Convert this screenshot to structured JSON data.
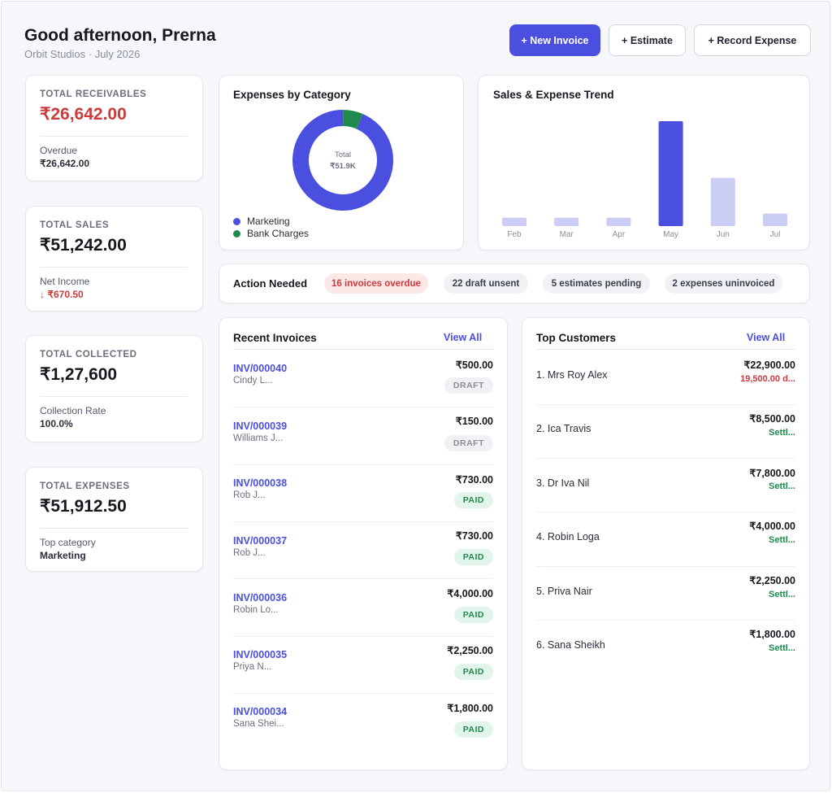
{
  "header": {
    "greeting": "Good afternoon, Prerna",
    "subtitle": "Orbit Studios · July 2026",
    "new_invoice": "+ New Invoice",
    "estimate": "+ Estimate",
    "record_expense": "+ Record Expense"
  },
  "colors": {
    "accent": "#4a4fe0",
    "marketing": "#4a4fe0",
    "bank_charges": "#1f8a4c",
    "danger": "#cc3b3b",
    "bar_muted": "#cbcdf5"
  },
  "kpis": {
    "receivables": {
      "label": "TOTAL RECEIVABLES",
      "value": "₹26,642.00",
      "sublabel": "Overdue",
      "subvalue": "₹26,642.00"
    },
    "sales": {
      "label": "TOTAL SALES",
      "value": "₹51,242.00",
      "sublabel": "Net Income",
      "subvalue": "↓ ₹670.50"
    },
    "collected": {
      "label": "TOTAL COLLECTED",
      "value": "₹1,27,600",
      "sublabel": "Collection Rate",
      "subvalue": "100.0%"
    },
    "expenses": {
      "label": "TOTAL EXPENSES",
      "value": "₹51,912.50",
      "sublabel": "Top category",
      "subvalue": "Marketing"
    }
  },
  "expenses_by_category": {
    "title": "Expenses by Category",
    "center_label": "Total",
    "center_value": "₹51.9K",
    "slices": [
      {
        "name": "Marketing",
        "fraction": 0.935
      },
      {
        "name": "Bank Charges",
        "fraction": 0.065
      }
    ]
  },
  "trend": {
    "title": "Sales & Expense Trend",
    "categories": [
      "Feb",
      "Mar",
      "Apr",
      "May",
      "Jun",
      "Jul"
    ],
    "values": [
      8,
      8,
      8,
      100,
      46,
      12
    ],
    "highlight_index": 3
  },
  "actions": {
    "title": "Action Needed",
    "items": [
      {
        "label": "16 invoices overdue",
        "tone": "red"
      },
      {
        "label": "22 draft unsent",
        "tone": "neutral"
      },
      {
        "label": "5 estimates pending",
        "tone": "neutral"
      },
      {
        "label": "2 expenses uninvoiced",
        "tone": "neutral"
      }
    ]
  },
  "recent_invoices": {
    "title": "Recent Invoices",
    "view_all": "View All",
    "rows": [
      {
        "id": "INV/000040",
        "name": "Cindy L...",
        "amount": "₹500.00",
        "status": "DRAFT"
      },
      {
        "id": "INV/000039",
        "name": "Williams J...",
        "amount": "₹150.00",
        "status": "DRAFT"
      },
      {
        "id": "INV/000038",
        "name": "Rob J...",
        "amount": "₹730.00",
        "status": "PAID"
      },
      {
        "id": "INV/000037",
        "name": "Rob J...",
        "amount": "₹730.00",
        "status": "PAID"
      },
      {
        "id": "INV/000036",
        "name": "Robin Lo...",
        "amount": "₹4,000.00",
        "status": "PAID"
      },
      {
        "id": "INV/000035",
        "name": "Priya N...",
        "amount": "₹2,250.00",
        "status": "PAID"
      },
      {
        "id": "INV/000034",
        "name": "Sana Shei...",
        "amount": "₹1,800.00",
        "status": "PAID"
      }
    ]
  },
  "top_customers": {
    "title": "Top Customers",
    "view_all": "View All",
    "rows": [
      {
        "name": "1. Mrs Roy Alex",
        "amount": "₹22,900.00",
        "status": "19,500.00 d...",
        "tone": "red"
      },
      {
        "name": "2. Ica Travis",
        "amount": "₹8,500.00",
        "status": "Settl...",
        "tone": "green"
      },
      {
        "name": "3. Dr Iva Nil",
        "amount": "₹7,800.00",
        "status": "Settl...",
        "tone": "green"
      },
      {
        "name": "4. Robin Loga",
        "amount": "₹4,000.00",
        "status": "Settl...",
        "tone": "green"
      },
      {
        "name": "5. Priva Nair",
        "amount": "₹2,250.00",
        "status": "Settl...",
        "tone": "green"
      },
      {
        "name": "6. Sana Sheikh",
        "amount": "₹1,800.00",
        "status": "Settl...",
        "tone": "green"
      }
    ]
  }
}
